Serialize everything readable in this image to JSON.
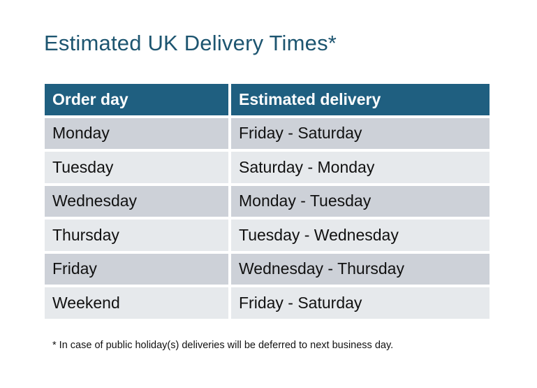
{
  "title": "Estimated UK Delivery Times*",
  "table": {
    "headers": [
      "Order day",
      "Estimated delivery"
    ],
    "rows": [
      [
        "Monday",
        "Friday - Saturday"
      ],
      [
        "Tuesday",
        "Saturday - Monday"
      ],
      [
        "Wednesday",
        "Monday - Tuesday"
      ],
      [
        "Thursday",
        "Tuesday - Wednesday"
      ],
      [
        "Friday",
        "Wednesday - Thursday"
      ],
      [
        "Weekend",
        "Friday - Saturday"
      ]
    ]
  },
  "footnote": "* In case of public holiday(s) deliveries will be deferred to next business day.",
  "colors": {
    "header_bg": "#1f5f80",
    "title": "#1d5570",
    "row_odd": "#cdd1d8",
    "row_even": "#e6e9ec"
  }
}
